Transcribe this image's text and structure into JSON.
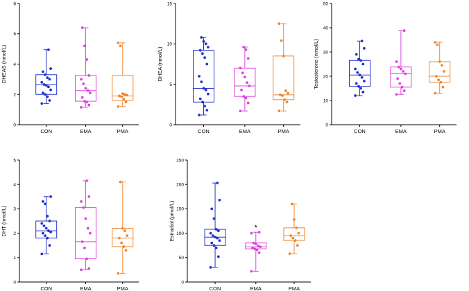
{
  "colors": {
    "CON": "#2233cc",
    "EMA": "#dd44dd",
    "PMA": "#ee8833",
    "axis": "#000000"
  },
  "chart_data": [
    {
      "type": "box",
      "id": "dheas",
      "title": "",
      "ylabel": "DHEAS (nmol/L)",
      "ylim": [
        0,
        8
      ],
      "yticks": [
        "0",
        "2",
        "4",
        "6",
        "8"
      ],
      "categories": [
        "CON",
        "EMA",
        "PMA"
      ],
      "boxes": [
        {
          "group": "CON",
          "min": 1.4,
          "q1": 2.0,
          "median": 2.65,
          "q3": 3.3,
          "max": 4.95,
          "points": [
            1.4,
            1.6,
            1.85,
            2.0,
            2.1,
            2.3,
            2.5,
            2.6,
            2.65,
            2.8,
            3.0,
            3.1,
            3.3,
            3.5,
            3.7,
            4.95
          ]
        },
        {
          "group": "EMA",
          "min": 1.15,
          "q1": 1.55,
          "median": 2.25,
          "q3": 3.25,
          "max": 6.4,
          "points": [
            1.15,
            1.3,
            1.5,
            1.55,
            1.8,
            2.1,
            2.25,
            2.4,
            2.7,
            3.0,
            3.25,
            4.3,
            5.2,
            6.4
          ]
        },
        {
          "group": "PMA",
          "min": 1.2,
          "q1": 1.6,
          "median": 1.9,
          "q3": 3.25,
          "max": 5.4,
          "points": [
            1.2,
            1.5,
            1.7,
            1.85,
            1.9,
            1.95,
            2.0,
            2.05,
            5.2,
            5.4
          ]
        }
      ],
      "significance": []
    },
    {
      "type": "box",
      "id": "dhea",
      "title": "",
      "ylabel": "DHEA (nmol/L)",
      "ylim": [
        0,
        15
      ],
      "yticks": [
        "0",
        "5",
        "10",
        "15"
      ],
      "categories": [
        "CON",
        "EMA",
        "PMA"
      ],
      "boxes": [
        {
          "group": "CON",
          "min": 1.2,
          "q1": 2.8,
          "median": 4.5,
          "q3": 9.2,
          "max": 10.8,
          "points": [
            1.2,
            1.8,
            2.3,
            2.8,
            3.2,
            3.8,
            4.3,
            4.5,
            5.3,
            6.0,
            7.5,
            8.3,
            8.8,
            9.2,
            9.6,
            10.0,
            10.3,
            10.8
          ]
        },
        {
          "group": "EMA",
          "min": 1.7,
          "q1": 3.5,
          "median": 4.8,
          "q3": 7.0,
          "max": 9.6,
          "points": [
            1.7,
            2.7,
            3.3,
            3.5,
            4.3,
            4.8,
            5.2,
            5.9,
            6.4,
            7.0,
            8.2,
            9.3,
            9.6
          ]
        },
        {
          "group": "PMA",
          "min": 1.7,
          "q1": 3.1,
          "median": 3.7,
          "q3": 8.5,
          "max": 12.5,
          "points": [
            1.7,
            2.8,
            3.1,
            3.6,
            3.7,
            3.9,
            4.2,
            8.5,
            10.4,
            12.5
          ]
        }
      ],
      "significance": []
    },
    {
      "type": "box",
      "id": "testosterone",
      "title": "",
      "ylabel": "Testosterone (nmol/L)",
      "ylim": [
        0,
        50
      ],
      "yticks": [
        "0",
        "10",
        "20",
        "30",
        "40",
        "50"
      ],
      "categories": [
        "CON",
        "EMA",
        "PMA"
      ],
      "boxes": [
        {
          "group": "CON",
          "min": 12.0,
          "q1": 15.8,
          "median": 20.5,
          "q3": 26.5,
          "max": 34.5,
          "points": [
            12.0,
            13.5,
            15.0,
            15.8,
            17.0,
            18.0,
            19.5,
            20.5,
            21.5,
            23.0,
            25.0,
            26.5,
            27.0,
            29.0,
            31.5,
            34.5
          ]
        },
        {
          "group": "EMA",
          "min": 12.5,
          "q1": 15.5,
          "median": 21.0,
          "q3": 23.8,
          "max": 38.8,
          "points": [
            12.5,
            14.0,
            15.5,
            17.0,
            19.0,
            21.0,
            22.0,
            23.0,
            23.8,
            26.0,
            38.8
          ]
        },
        {
          "group": "PMA",
          "min": 13.0,
          "q1": 17.5,
          "median": 20.0,
          "q3": 26.0,
          "max": 34.0,
          "points": [
            13.0,
            15.5,
            17.5,
            18.5,
            20.0,
            22.0,
            24.5,
            26.0,
            33.0,
            34.0
          ]
        }
      ],
      "significance": []
    },
    {
      "type": "box",
      "id": "dht",
      "title": "",
      "ylabel": "DHT (nmol/L)",
      "ylim": [
        0,
        5
      ],
      "yticks": [
        "0",
        "1",
        "2",
        "3",
        "4",
        "5"
      ],
      "categories": [
        "CON",
        "EMA",
        "PMA"
      ],
      "boxes": [
        {
          "group": "CON",
          "min": 1.15,
          "q1": 1.8,
          "median": 2.1,
          "q3": 2.5,
          "max": 3.5,
          "points": [
            1.15,
            1.5,
            1.8,
            1.9,
            2.0,
            2.05,
            2.1,
            2.2,
            2.3,
            2.4,
            2.5,
            2.7,
            3.2,
            3.3,
            3.5
          ]
        },
        {
          "group": "EMA",
          "min": 0.5,
          "q1": 0.95,
          "median": 1.65,
          "q3": 3.05,
          "max": 4.15,
          "points": [
            0.5,
            0.55,
            0.95,
            1.4,
            1.65,
            2.0,
            2.2,
            2.6,
            3.05,
            3.3,
            3.5,
            4.15
          ]
        },
        {
          "group": "PMA",
          "min": 0.35,
          "q1": 1.45,
          "median": 1.8,
          "q3": 2.2,
          "max": 4.1,
          "points": [
            0.35,
            1.3,
            1.45,
            1.6,
            1.8,
            1.9,
            2.1,
            2.2,
            4.1
          ]
        }
      ],
      "significance": []
    },
    {
      "type": "box",
      "id": "estradiol",
      "title": "",
      "ylabel": "Estradiol (pmol/L)",
      "ylim": [
        0,
        250
      ],
      "yticks": [
        "0",
        "50",
        "100",
        "150",
        "200",
        "250"
      ],
      "categories": [
        "CON",
        "EMA",
        "PMA"
      ],
      "boxes": [
        {
          "group": "CON",
          "min": 30,
          "q1": 75,
          "median": 92,
          "q3": 108,
          "max": 203,
          "points": [
            30,
            52,
            70,
            75,
            80,
            85,
            90,
            92,
            95,
            100,
            105,
            108,
            130,
            150,
            168,
            203
          ]
        },
        {
          "group": "EMA",
          "min": 22,
          "q1": 68,
          "median": 72,
          "q3": 80,
          "max": 102,
          "points": [
            22,
            60,
            66,
            68,
            70,
            72,
            74,
            78,
            80,
            100,
            102
          ]
        },
        {
          "group": "PMA",
          "min": 58,
          "q1": 85,
          "median": 95,
          "q3": 111,
          "max": 160,
          "points": [
            58,
            75,
            85,
            90,
            95,
            100,
            111,
            128,
            160
          ]
        }
      ],
      "significance": [
        {
          "group": "EMA",
          "label": "*",
          "at": 108
        }
      ]
    }
  ]
}
